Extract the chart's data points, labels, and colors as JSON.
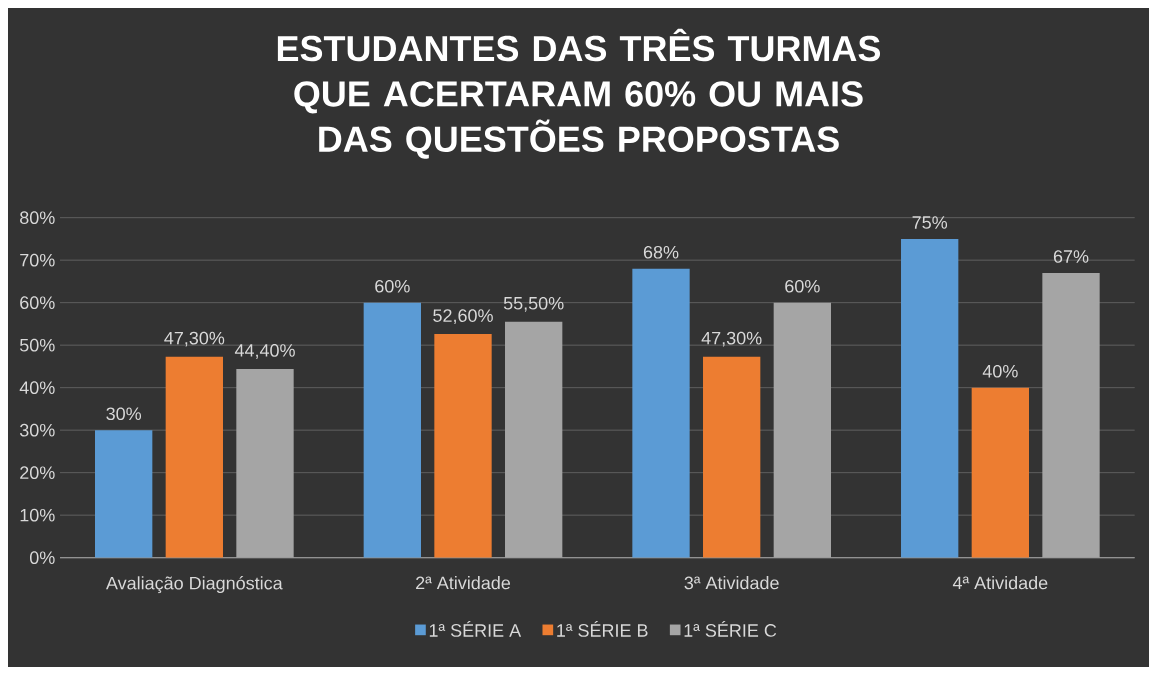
{
  "chart_data": {
    "type": "bar",
    "title": "ESTUDANTES DAS TRÊS TURMAS QUE ACERTARAM 60% OU MAIS DAS QUESTÕES PROPOSTAS",
    "categories": [
      "Avaliação Diagnóstica",
      "2ª Atividade",
      "3ª Atividade",
      "4ª Atividade"
    ],
    "series": [
      {
        "name": "1ª SÉRIE A",
        "color": "#5b9bd5",
        "values": [
          30,
          60,
          68,
          75
        ],
        "value_labels": [
          "30%",
          "60%",
          "68%",
          "75%"
        ]
      },
      {
        "name": "1ª SÉRIE B",
        "color": "#ed7d31",
        "values": [
          47.3,
          52.6,
          47.3,
          40
        ],
        "value_labels": [
          "47,30%",
          "52,60%",
          "47,30%",
          "40%"
        ]
      },
      {
        "name": "1ª SÉRIE C",
        "color": "#a5a5a5",
        "values": [
          44.4,
          55.5,
          60,
          67
        ],
        "value_labels": [
          "44,40%",
          "55,50%",
          "60%",
          "67%"
        ]
      }
    ],
    "ylim": [
      0,
      80
    ],
    "yticks": [
      {
        "value": 0,
        "label": "0%"
      },
      {
        "value": 10,
        "label": "10%"
      },
      {
        "value": 20,
        "label": "20%"
      },
      {
        "value": 30,
        "label": "30%"
      },
      {
        "value": 40,
        "label": "40%"
      },
      {
        "value": 50,
        "label": "50%"
      },
      {
        "value": 60,
        "label": "60%"
      },
      {
        "value": 70,
        "label": "70%"
      },
      {
        "value": 80,
        "label": "80%"
      }
    ],
    "grid": "y",
    "legend": "bottom"
  }
}
